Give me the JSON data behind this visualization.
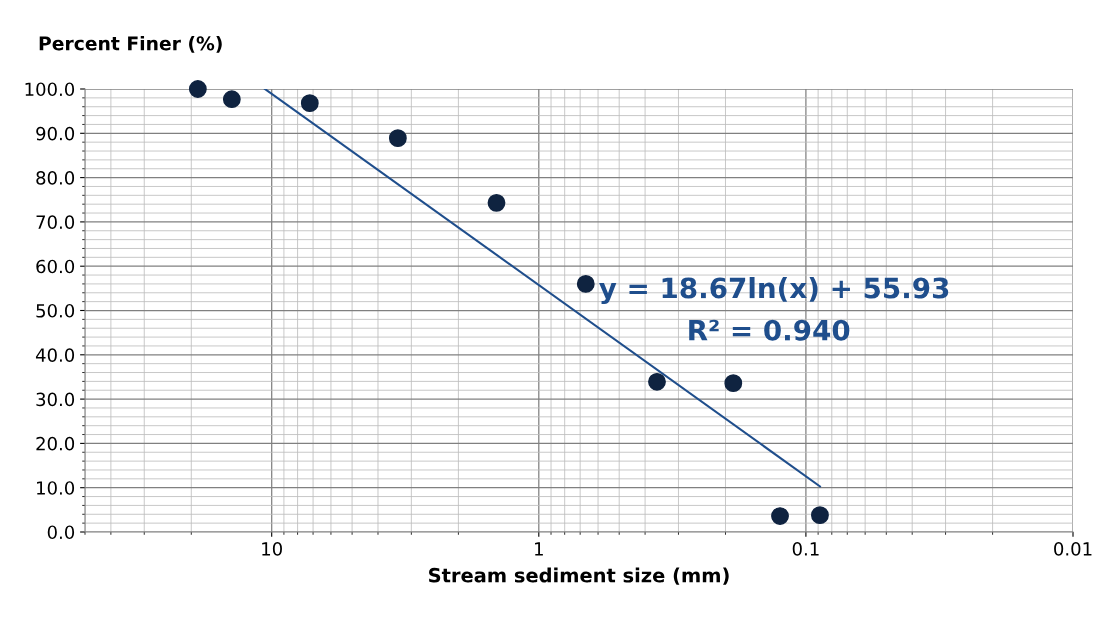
{
  "chart_data": {
    "type": "scatter",
    "xlabel": "Stream sediment size (mm)",
    "ylabel": "Percent Finer (%)",
    "log": "x",
    "xlim": [
      50,
      0.01
    ],
    "xticks": [
      10,
      1,
      0.1,
      0.01
    ],
    "ylim": [
      0,
      100
    ],
    "yticks": [
      {
        "value": 0,
        "label": "0.0"
      },
      {
        "value": 10,
        "label": "10.0"
      },
      {
        "value": 20,
        "label": "20.0"
      },
      {
        "value": 30,
        "label": "30.0"
      },
      {
        "value": 40,
        "label": "40.0"
      },
      {
        "value": 50,
        "label": "50.0"
      },
      {
        "value": 60,
        "label": "60.0"
      },
      {
        "value": 70,
        "label": "70.0"
      },
      {
        "value": 80,
        "label": "80.0"
      },
      {
        "value": 90,
        "label": "90.0"
      },
      {
        "value": 100,
        "label": "100.0"
      }
    ],
    "grid": true,
    "series": [
      {
        "marker": "circle",
        "color": "#0f2340",
        "x": [
          18.9,
          14.1,
          7.2,
          3.37,
          1.44,
          0.667,
          0.361,
          0.187,
          0.125,
          0.0886
        ],
        "values": [
          100.0,
          97.7,
          96.8,
          88.9,
          74.3,
          56.0,
          33.9,
          33.6,
          3.6,
          3.8
        ]
      },
      {
        "type": "line",
        "color": "#1f4e8c",
        "x": [
          10.6,
          0.0886
        ],
        "values": [
          100.0,
          10.3
        ]
      }
    ],
    "annotations": [
      "y = 18.67ln(x) + 55.93",
      "R² = 0.940"
    ]
  }
}
